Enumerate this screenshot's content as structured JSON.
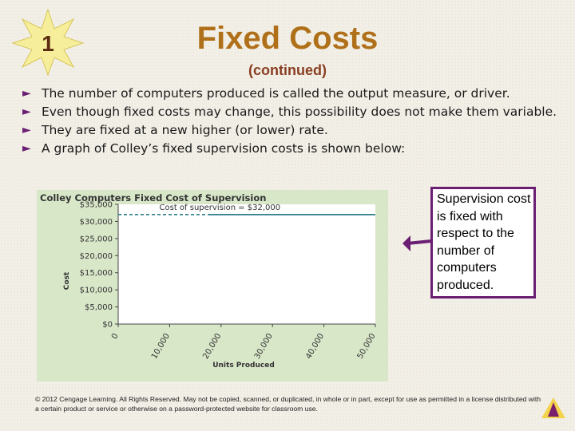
{
  "slide": {
    "number": "1",
    "title": "Fixed Costs",
    "subtitle": "(continued)",
    "bullets": [
      "The number of computers produced is called the output measure, or driver.",
      "Even though fixed costs may change, this possibility does not make them variable.",
      "They are fixed at a new higher (or lower) rate.",
      "A graph of Colley’s fixed supervision costs is shown below:"
    ],
    "callout": "Supervision cost is fixed with respect to the number of computers produced.",
    "copyright": "© 2012 Cengage Learning. All Rights Reserved. May not be copied, scanned, or duplicated, in whole or in part, except for use as permitted in a license distributed with a certain product or service or otherwise on a password-protected website for classroom use.",
    "colors": {
      "title": "#b0701a",
      "subtitle": "#8a3e22",
      "accent": "#6b1f73",
      "chart_panel": "#d9e7c9",
      "line": "#2f7f8c"
    }
  },
  "chart_data": {
    "type": "line",
    "title": "Colley Computers Fixed Cost of Supervision",
    "xlabel": "Units Produced",
    "ylabel": "Cost",
    "x_ticks": [
      0,
      10000,
      20000,
      30000,
      40000,
      50000
    ],
    "x_tick_labels": [
      "0",
      "10,000",
      "20,000",
      "30,000",
      "40,000",
      "50,000"
    ],
    "y_ticks": [
      0,
      5000,
      10000,
      15000,
      20000,
      25000,
      30000,
      35000
    ],
    "y_tick_labels": [
      "$0",
      "$5,000",
      "$10,000",
      "$15,000",
      "$20,000",
      "$25,000",
      "$30,000",
      "$35,000"
    ],
    "xlim": [
      0,
      50000
    ],
    "ylim": [
      0,
      35000
    ],
    "series": [
      {
        "x": [
          0,
          50000
        ],
        "y": [
          32000,
          32000
        ]
      }
    ],
    "annotation": "Cost of supervision = $32,000",
    "grid": false
  }
}
